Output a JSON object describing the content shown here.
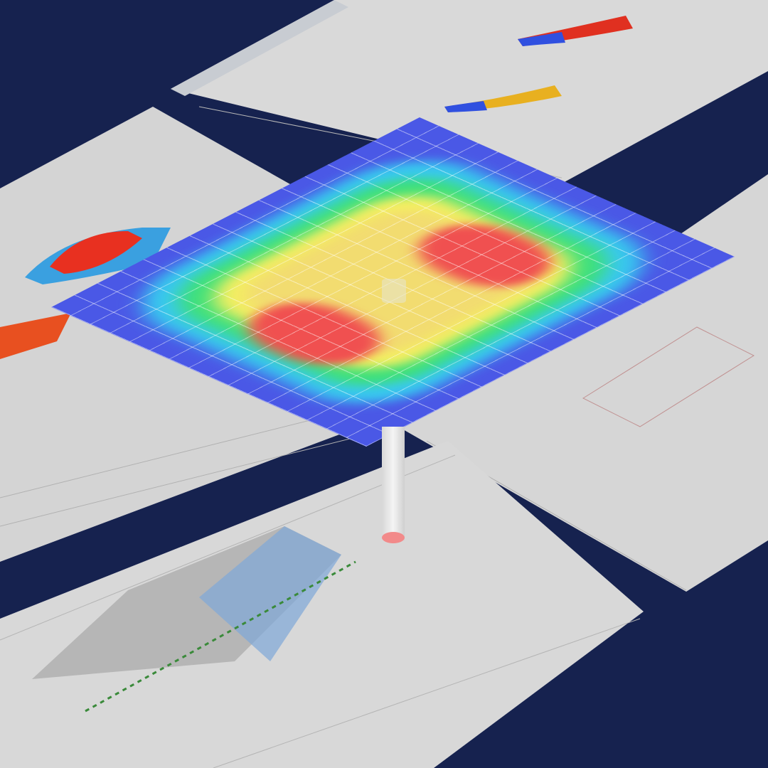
{
  "scene": {
    "background_color": "#16224f",
    "panel_color": "#d7d7d7",
    "heatmap_colors": [
      "#4a58e6",
      "#38c8f0",
      "#3de07a",
      "#f4f060",
      "#f05050"
    ],
    "column_icon": "column-icon"
  }
}
